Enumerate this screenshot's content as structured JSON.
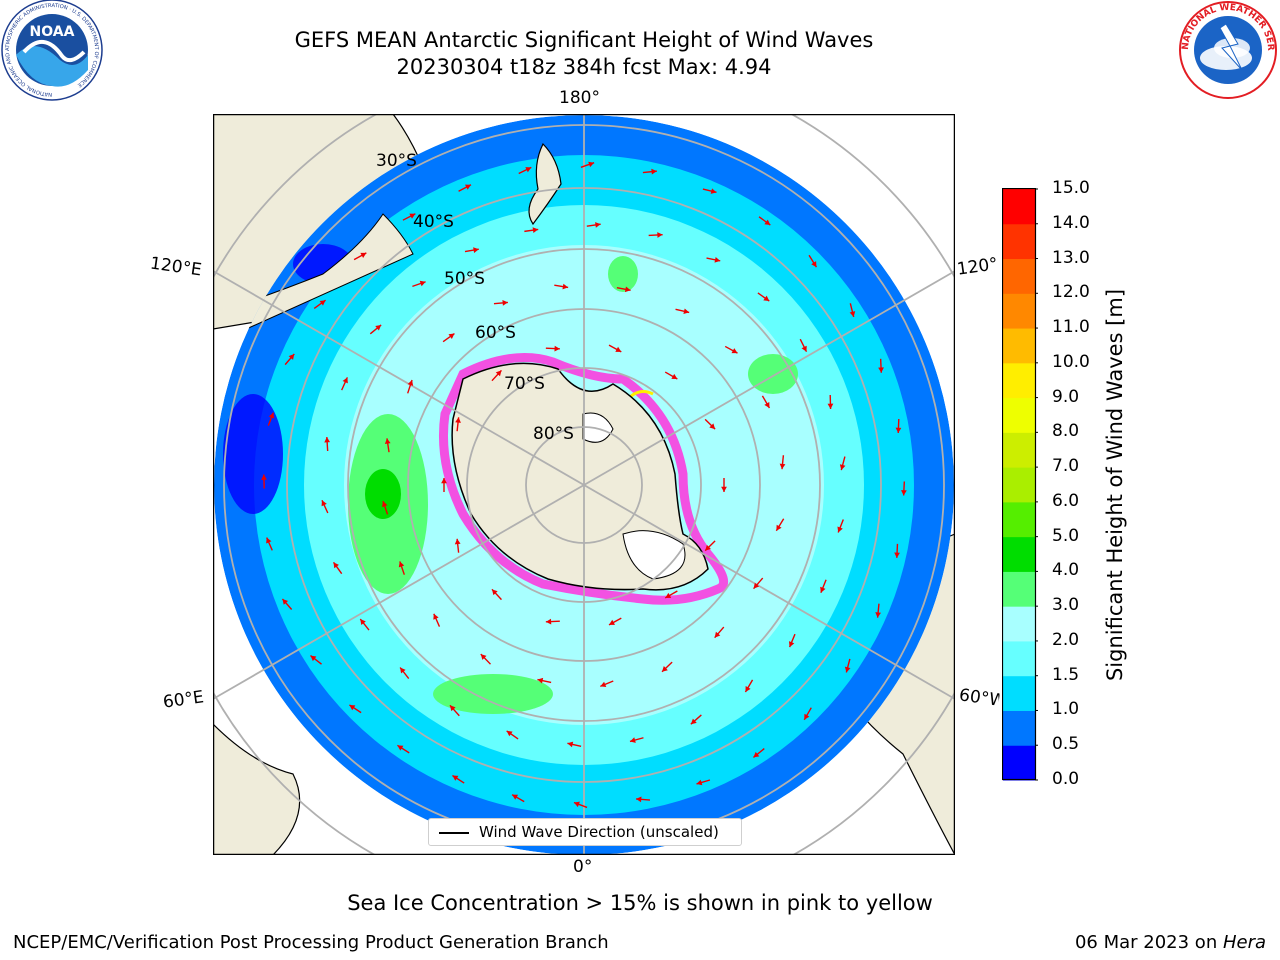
{
  "title": {
    "line1": "GEFS MEAN Antarctic Significant Height of Wind Waves",
    "line2": "20230304 t18z 384h fcst   Max: 4.94"
  },
  "logos": {
    "noaa": {
      "text": "NOAA",
      "ring_text": "NATIONAL OCEANIC AND ATMOSPHERIC ADMINISTRATION · U.S. DEPARTMENT OF COMMERCE"
    },
    "nws": {
      "ring_text": "NATIONAL WEATHER SERVICE"
    }
  },
  "map": {
    "projection": "south-polar-stereographic",
    "lat_labels": [
      "30°S",
      "40°S",
      "50°S",
      "60°S",
      "70°S",
      "80°S"
    ],
    "lon_labels": {
      "top": "180°",
      "upper_left": "120°E",
      "upper_right": "120°W",
      "lower_left": "60°E",
      "lower_right": "60°W",
      "bottom": "0°"
    },
    "legend": "Wind Wave Direction (unscaled)",
    "colors": {
      "land": "#efecda",
      "ice_edge": "#ff33dd",
      "arrows": "#ee0000",
      "grid": "#b0b0b0"
    }
  },
  "colorbar": {
    "label": "Significant Height of Wind Waves [m]",
    "ticks": [
      "0.0",
      "0.5",
      "1.0",
      "1.5",
      "2.0",
      "3.0",
      "4.0",
      "5.0",
      "6.0",
      "7.0",
      "8.0",
      "9.0",
      "10.0",
      "11.0",
      "12.0",
      "13.0",
      "14.0",
      "15.0"
    ],
    "colors": [
      "#0000ff",
      "#0077ff",
      "#00ddff",
      "#66ffff",
      "#a8ffff",
      "#55ff77",
      "#00dd00",
      "#55ee00",
      "#aaee00",
      "#ccee00",
      "#eeff00",
      "#ffee00",
      "#ffbb00",
      "#ff8800",
      "#ff6600",
      "#ff3300",
      "#ff0000"
    ]
  },
  "caption": "Sea Ice Concentration > 15% is shown in pink to yellow",
  "footer": {
    "left": "NCEP/EMC/Verification Post Processing Product Generation Branch",
    "right_date": "06 Mar 2023 on ",
    "right_machine": "Hera"
  }
}
